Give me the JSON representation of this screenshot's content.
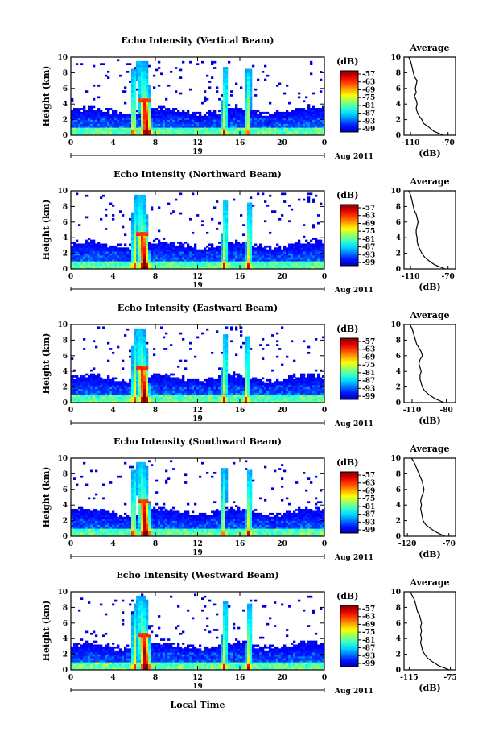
{
  "figure": {
    "xlabel": "Local Time",
    "date_label": "Aug 2011",
    "day_label": "19",
    "colorbar_unit": "(dB)",
    "avg_title": "Average",
    "avg_xlabel": "(dB)"
  },
  "chart_data": [
    {
      "type": "heatmap",
      "title": "Echo Intensity (Vertical Beam)",
      "ylabel": "Height (km)",
      "x_ticks": [
        "0",
        "4",
        "8",
        "12",
        "16",
        "20",
        "0"
      ],
      "y_ticks": [
        "0",
        "2",
        "4",
        "6",
        "8",
        "10"
      ],
      "xlim": [
        0,
        24
      ],
      "ylim": [
        0,
        10
      ],
      "colorbar_ticks": [
        "-57",
        "-63",
        "-69",
        "-75",
        "-81",
        "-87",
        "-93",
        "-99"
      ],
      "bursts_hours": [
        5.9,
        7.2,
        14.5,
        16.7
      ],
      "average_profile": {
        "title": "Average",
        "xlabel": "(dB)",
        "x_ticks": [
          "-110",
          "-70"
        ],
        "xlim": [
          -117,
          -62
        ],
        "y_ticks": [
          "0",
          "2",
          "4",
          "6",
          "8",
          "10"
        ],
        "db": [
          -75,
          -85,
          -90,
          -96,
          -98,
          -101,
          -103,
          -104,
          -103,
          -104,
          -106,
          -104,
          -105,
          -104,
          -103,
          -106,
          -107,
          -108,
          -109,
          -110,
          -112
        ],
        "height_km": [
          0,
          0.5,
          1,
          1.5,
          2,
          2.5,
          3,
          3.5,
          4,
          4.5,
          5,
          5.5,
          6,
          6.5,
          7,
          7.5,
          8,
          8.5,
          9,
          9.5,
          10
        ]
      }
    },
    {
      "type": "heatmap",
      "title": "Echo Intensity (Northward Beam)",
      "ylabel": "Height (km)",
      "x_ticks": [
        "0",
        "4",
        "8",
        "12",
        "16",
        "20",
        "0"
      ],
      "y_ticks": [
        "0",
        "2",
        "4",
        "6",
        "8",
        "10"
      ],
      "xlim": [
        0,
        24
      ],
      "ylim": [
        0,
        10
      ],
      "colorbar_ticks": [
        "-57",
        "-63",
        "-69",
        "-75",
        "-81",
        "-87",
        "-93",
        "-99"
      ],
      "bursts_hours": [
        6.0,
        7.0,
        14.5,
        16.8
      ],
      "average_profile": {
        "title": "Average",
        "xlabel": "(dB)",
        "x_ticks": [
          "-110",
          "-70"
        ],
        "xlim": [
          -117,
          -62
        ],
        "y_ticks": [
          "0",
          "2",
          "4",
          "6",
          "8",
          "10"
        ],
        "db": [
          -73,
          -84,
          -90,
          -95,
          -98,
          -100,
          -102,
          -103,
          -103,
          -104,
          -104,
          -103,
          -102,
          -103,
          -104,
          -106,
          -107,
          -108,
          -109,
          -110,
          -112
        ],
        "height_km": [
          0,
          0.5,
          1,
          1.5,
          2,
          2.5,
          3,
          3.5,
          4,
          4.5,
          5,
          5.5,
          6,
          6.5,
          7,
          7.5,
          8,
          8.5,
          9,
          9.5,
          10
        ]
      }
    },
    {
      "type": "heatmap",
      "title": "Echo Intensity (Eastward Beam)",
      "ylabel": "Height (km)",
      "x_ticks": [
        "0",
        "4",
        "8",
        "12",
        "16",
        "20",
        "0"
      ],
      "y_ticks": [
        "0",
        "2",
        "4",
        "6",
        "8",
        "10"
      ],
      "xlim": [
        0,
        24
      ],
      "ylim": [
        0,
        10
      ],
      "colorbar_ticks": [
        "-57",
        "-63",
        "-69",
        "-75",
        "-81",
        "-87",
        "-93",
        "-99"
      ],
      "bursts_hours": [
        6.0,
        7.0,
        14.5,
        16.6
      ],
      "average_profile": {
        "title": "Average",
        "xlabel": "(dB)",
        "x_ticks": [
          "-110",
          "-80"
        ],
        "xlim": [
          -117,
          -72
        ],
        "y_ticks": [
          "0",
          "2",
          "4",
          "6",
          "8",
          "10"
        ],
        "db": [
          -82,
          -90,
          -95,
          -99,
          -101,
          -102,
          -103,
          -103,
          -102,
          -103,
          -104,
          -103,
          -101,
          -102,
          -104,
          -106,
          -107,
          -108,
          -109,
          -110,
          -112
        ],
        "height_km": [
          0,
          0.5,
          1,
          1.5,
          2,
          2.5,
          3,
          3.5,
          4,
          4.5,
          5,
          5.5,
          6,
          6.5,
          7,
          7.5,
          8,
          8.5,
          9,
          9.5,
          10
        ]
      }
    },
    {
      "type": "heatmap",
      "title": "Echo Intensity (Southward Beam)",
      "ylabel": "Height (km)",
      "x_ticks": [
        "0",
        "4",
        "8",
        "12",
        "16",
        "20",
        "0"
      ],
      "y_ticks": [
        "0",
        "2",
        "4",
        "6",
        "8",
        "10"
      ],
      "xlim": [
        0,
        24
      ],
      "ylim": [
        0,
        10
      ],
      "colorbar_ticks": [
        "-57",
        "-63",
        "-69",
        "-75",
        "-81",
        "-87",
        "-93",
        "-99"
      ],
      "bursts_hours": [
        5.9,
        7.1,
        14.4,
        16.8
      ],
      "average_profile": {
        "title": "Average",
        "xlabel": "(dB)",
        "x_ticks": [
          "-120",
          "-70"
        ],
        "xlim": [
          -124,
          -62
        ],
        "y_ticks": [
          "0",
          "2",
          "4",
          "6",
          "8",
          "10"
        ],
        "db": [
          -75,
          -85,
          -92,
          -98,
          -101,
          -102,
          -103,
          -104,
          -103,
          -104,
          -103,
          -101,
          -100,
          -101,
          -102,
          -104,
          -106,
          -108,
          -110,
          -112,
          -115
        ],
        "height_km": [
          0,
          0.5,
          1,
          1.5,
          2,
          2.5,
          3,
          3.5,
          4,
          4.5,
          5,
          5.5,
          6,
          6.5,
          7,
          7.5,
          8,
          8.5,
          9,
          9.5,
          10
        ]
      }
    },
    {
      "type": "heatmap",
      "title": "Echo Intensity (Westward Beam)",
      "ylabel": "Height (km)",
      "x_ticks": [
        "0",
        "4",
        "8",
        "12",
        "16",
        "20",
        "0"
      ],
      "y_ticks": [
        "0",
        "2",
        "4",
        "6",
        "8",
        "10"
      ],
      "xlim": [
        0,
        24
      ],
      "ylim": [
        0,
        10
      ],
      "colorbar_ticks": [
        "-57",
        "-63",
        "-69",
        "-75",
        "-81",
        "-87",
        "-93",
        "-99"
      ],
      "bursts_hours": [
        6.0,
        7.1,
        14.5,
        16.8
      ],
      "average_profile": {
        "title": "Average",
        "xlabel": "(dB)",
        "x_ticks": [
          "-115",
          "-75"
        ],
        "xlim": [
          -120,
          -70
        ],
        "y_ticks": [
          "0",
          "2",
          "4",
          "6",
          "8",
          "10"
        ],
        "db": [
          -76,
          -86,
          -92,
          -97,
          -100,
          -102,
          -103,
          -104,
          -103,
          -104,
          -103,
          -104,
          -103,
          -104,
          -105,
          -107,
          -108,
          -109,
          -110,
          -112,
          -114
        ],
        "height_km": [
          0,
          0.5,
          1,
          1.5,
          2,
          2.5,
          3,
          3.5,
          4,
          4.5,
          5,
          5.5,
          6,
          6.5,
          7,
          7.5,
          8,
          8.5,
          9,
          9.5,
          10
        ]
      }
    }
  ]
}
